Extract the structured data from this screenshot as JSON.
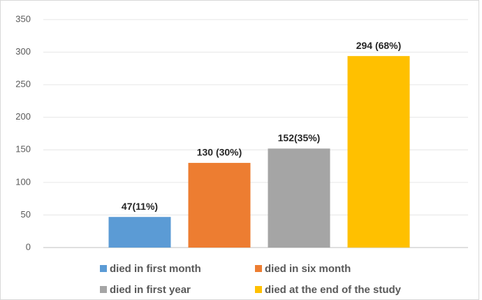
{
  "chart_data": {
    "type": "bar",
    "categories": [
      null
    ],
    "series": [
      {
        "name": "died in first month",
        "color": "#5b9bd5",
        "values": [
          47
        ],
        "value_labels": [
          "47(11%)"
        ]
      },
      {
        "name": "died in six month",
        "color": "#ed7d31",
        "values": [
          130
        ],
        "value_labels": [
          "130 (30%)"
        ]
      },
      {
        "name": "died in first year",
        "color": "#a5a5a5",
        "values": [
          152
        ],
        "value_labels": [
          "152(35%)"
        ]
      },
      {
        "name": "died at the end of the study",
        "color": "#ffc000",
        "values": [
          294
        ],
        "value_labels": [
          "294 (68%)"
        ]
      }
    ],
    "ylim": [
      0,
      350
    ],
    "yticks": [
      0,
      50,
      100,
      150,
      200,
      250,
      300,
      350
    ],
    "grid": true,
    "legend": "bottom"
  }
}
